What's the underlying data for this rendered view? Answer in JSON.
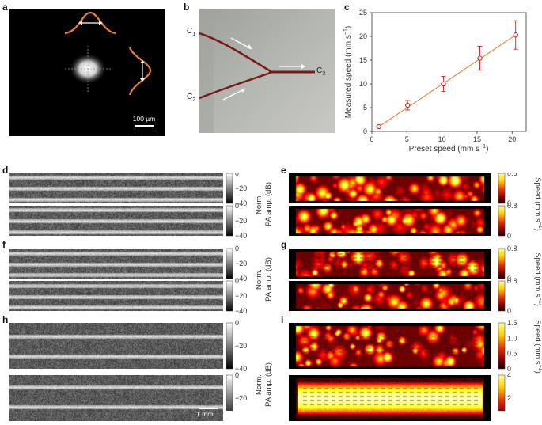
{
  "panels": {
    "a": "a",
    "b": "b",
    "c": "c",
    "d": "d",
    "e": "e",
    "f": "f",
    "g": "g",
    "h": "h",
    "i": "i"
  },
  "panel_a": {
    "scalebar": "100 µm"
  },
  "panel_b": {
    "c1_main": "C",
    "c1_sub": "1",
    "c2_main": "C",
    "c2_sub": "2",
    "c3_main": "C",
    "c3_sub": "3"
  },
  "gray_cbar": {
    "ticks": [
      "0",
      "−20",
      "−40"
    ],
    "label_line1": "Norm.",
    "label_line2": "PA amp. (dB)"
  },
  "speed_cbar": {
    "label_main": "Speed (mm s",
    "label_sup": "−1",
    "label_end": ")",
    "ticks_small": [
      "0.8",
      "0.4",
      "0"
    ],
    "ticks_i1": [
      "1.5",
      "1.0",
      "0.5",
      "0"
    ],
    "ticks_i2": [
      "4",
      "2",
      "0"
    ]
  },
  "panel_h": {
    "scalebar": "1 mm"
  },
  "colors": {
    "fit_line": "#e8823a",
    "marker": "#cc1f1f",
    "vessel": "#7a1818"
  },
  "chart_data": {
    "type": "scatter",
    "title": "",
    "xlabel_main": "Preset speed (mm s",
    "xlabel_sup": "−1",
    "xlabel_end": ")",
    "ylabel_main": "Measured speed (mm s",
    "ylabel_sup": "−1",
    "ylabel_end": ")",
    "xlim": [
      0,
      22
    ],
    "ylim": [
      0,
      25
    ],
    "xticks": [
      0,
      5,
      10,
      15,
      20
    ],
    "yticks": [
      0,
      5,
      10,
      15,
      20,
      25
    ],
    "x": [
      1,
      5.1,
      10.2,
      15.4,
      20.5
    ],
    "y": [
      1.0,
      5.5,
      10.0,
      15.4,
      20.3
    ],
    "yerr": [
      0.2,
      1.0,
      1.6,
      2.5,
      3.0
    ],
    "fit": {
      "x": [
        1,
        20.5
      ],
      "y": [
        1.0,
        20.3
      ]
    }
  }
}
